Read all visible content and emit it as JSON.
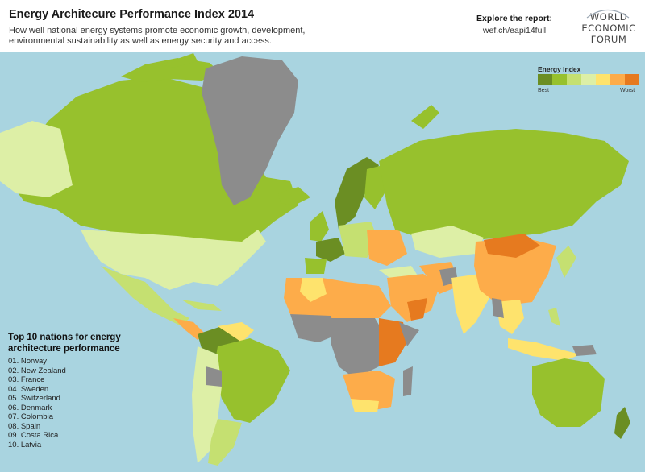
{
  "header": {
    "title": "Energy Architecure Performance Index 2014",
    "subtitle": "How well national energy systems promote economic growth, development, environmental sustainability as well as energy security and access.",
    "explore_label": "Explore the report:",
    "explore_url": "wef.ch/eapi14full"
  },
  "logo": {
    "lines": [
      "WORLD",
      "ECONOMIC",
      "FORUM"
    ]
  },
  "legend": {
    "title": "Energy Index",
    "best_label": "Best",
    "worst_label": "Worst",
    "colors": [
      "#6b8e23",
      "#97c12d",
      "#c5e071",
      "#ddefa6",
      "#fee36d",
      "#fdac4a",
      "#e67a1f"
    ]
  },
  "top10": {
    "heading": "Top 10 nations for energy architecture performance",
    "items": [
      "01. Norway",
      "02. New Zealand",
      "03. France",
      "04. Sweden",
      "05. Switzerland",
      "06. Denmark",
      "07. Colombia",
      "08. Spain",
      "09. Costa Rica",
      "10. Latvia"
    ]
  },
  "map": {
    "ocean_color": "#a9d4e0",
    "no_data_color": "#8c8c8c"
  }
}
